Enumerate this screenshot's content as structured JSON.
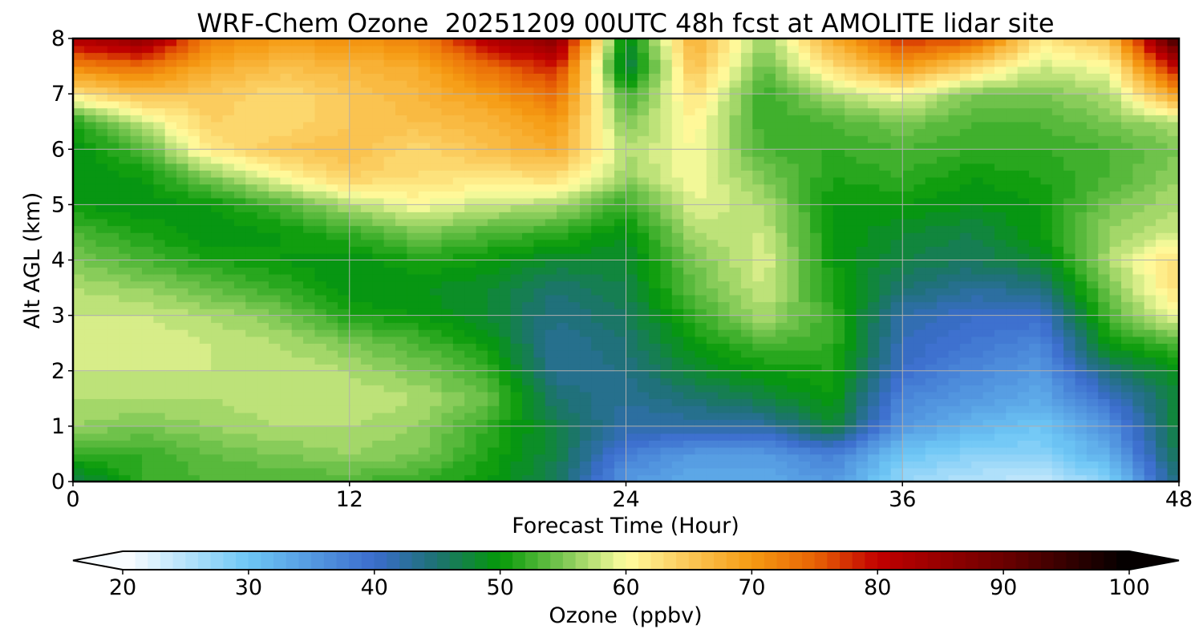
{
  "chart_data": {
    "type": "heatmap",
    "title": "WRF-Chem Ozone  20251209 00UTC 48h fcst at AMOLITE lidar site",
    "xlabel": "Forecast Time (Hour)",
    "ylabel": "Alt AGL (km)",
    "xlim": [
      0,
      48
    ],
    "ylim": [
      0,
      8
    ],
    "xticks": [
      "0",
      "12",
      "24",
      "36",
      "48"
    ],
    "yticks": [
      "0",
      "1",
      "2",
      "3",
      "4",
      "5",
      "6",
      "7",
      "8"
    ],
    "grid": true,
    "x_hours": [
      0,
      3,
      6,
      9,
      12,
      15,
      18,
      21,
      24,
      27,
      30,
      33,
      36,
      39,
      42,
      45,
      48
    ],
    "z_km": [
      0,
      0.5,
      1,
      1.5,
      2,
      2.5,
      3,
      3.5,
      4,
      4.5,
      5,
      5.5,
      6,
      6.5,
      7,
      7.5,
      8
    ],
    "ozone_ppbv": [
      [
        46,
        52,
        53,
        53,
        53,
        52,
        50,
        46,
        35,
        33,
        33,
        35,
        27,
        25,
        24,
        28,
        45
      ],
      [
        52,
        52,
        54,
        55,
        56,
        55,
        51,
        47,
        38,
        35,
        35,
        38,
        30,
        28,
        28,
        33,
        47
      ],
      [
        56,
        55,
        56,
        57,
        57,
        56,
        52,
        47,
        42,
        42,
        42,
        48,
        35,
        32,
        30,
        36,
        48
      ],
      [
        57,
        57,
        57,
        58,
        58,
        57,
        54,
        45,
        43,
        45,
        47,
        50,
        37,
        35,
        33,
        40,
        48
      ],
      [
        58,
        58,
        58,
        58,
        57,
        55,
        52,
        43,
        44,
        48,
        50,
        51,
        40,
        37,
        35,
        45,
        49
      ],
      [
        58,
        59,
        58,
        57,
        55,
        53,
        50,
        43,
        45,
        50,
        53,
        52,
        41,
        39,
        37,
        50,
        53
      ],
      [
        58,
        58,
        57,
        55,
        51,
        50,
        48,
        44,
        46,
        52,
        57,
        52,
        42,
        40,
        40,
        53,
        60
      ],
      [
        57,
        56,
        54,
        52,
        49,
        49,
        48,
        45,
        47,
        54,
        58,
        51,
        45,
        43,
        44,
        55,
        63
      ],
      [
        55,
        53,
        51,
        50,
        49,
        51,
        50,
        48,
        48,
        55,
        59,
        50,
        47,
        46,
        48,
        57,
        63
      ],
      [
        53,
        51,
        49,
        50,
        52,
        55,
        53,
        52,
        49,
        57,
        58,
        50,
        48,
        47,
        50,
        56,
        58
      ],
      [
        50,
        49,
        50,
        53,
        57,
        60,
        58,
        57,
        52,
        59,
        57,
        50,
        50,
        49,
        50,
        55,
        57
      ],
      [
        49,
        50,
        55,
        60,
        64,
        63,
        62,
        63,
        56,
        60,
        55,
        51,
        52,
        50,
        51,
        53,
        56
      ],
      [
        49,
        53,
        62,
        65,
        66,
        63,
        66,
        68,
        57,
        60,
        53,
        52,
        53,
        52,
        52,
        53,
        55
      ],
      [
        51,
        58,
        64,
        63,
        65,
        66,
        67,
        70,
        55,
        61,
        52,
        53,
        55,
        53,
        53,
        55,
        57
      ],
      [
        62,
        66,
        65,
        63,
        65,
        67,
        70,
        74,
        52,
        63,
        52,
        57,
        60,
        55,
        55,
        57,
        70
      ],
      [
        72,
        74,
        68,
        66,
        67,
        68,
        74,
        79,
        46,
        66,
        54,
        63,
        70,
        64,
        58,
        60,
        82
      ],
      [
        82,
        86,
        72,
        70,
        71,
        72,
        82,
        87,
        48,
        68,
        56,
        68,
        78,
        76,
        62,
        66,
        95
      ]
    ],
    "colorbar": {
      "label": "Ozone  (ppbv)",
      "min": 20,
      "max": 100,
      "step": 1,
      "ticks": [
        "20",
        "30",
        "40",
        "50",
        "60",
        "70",
        "80",
        "90",
        "100"
      ],
      "extend": "both",
      "anchors": [
        [
          20,
          "#ffffff"
        ],
        [
          30,
          "#6dc6f5"
        ],
        [
          40,
          "#3b6ccd"
        ],
        [
          45,
          "#1d7272"
        ],
        [
          50,
          "#059a07"
        ],
        [
          55,
          "#7bc652"
        ],
        [
          60,
          "#fffda0"
        ],
        [
          65,
          "#fbc757"
        ],
        [
          70,
          "#f59a12"
        ],
        [
          75,
          "#e86405"
        ],
        [
          80,
          "#c20000"
        ],
        [
          90,
          "#6b0000"
        ],
        [
          100,
          "#000000"
        ]
      ]
    }
  }
}
